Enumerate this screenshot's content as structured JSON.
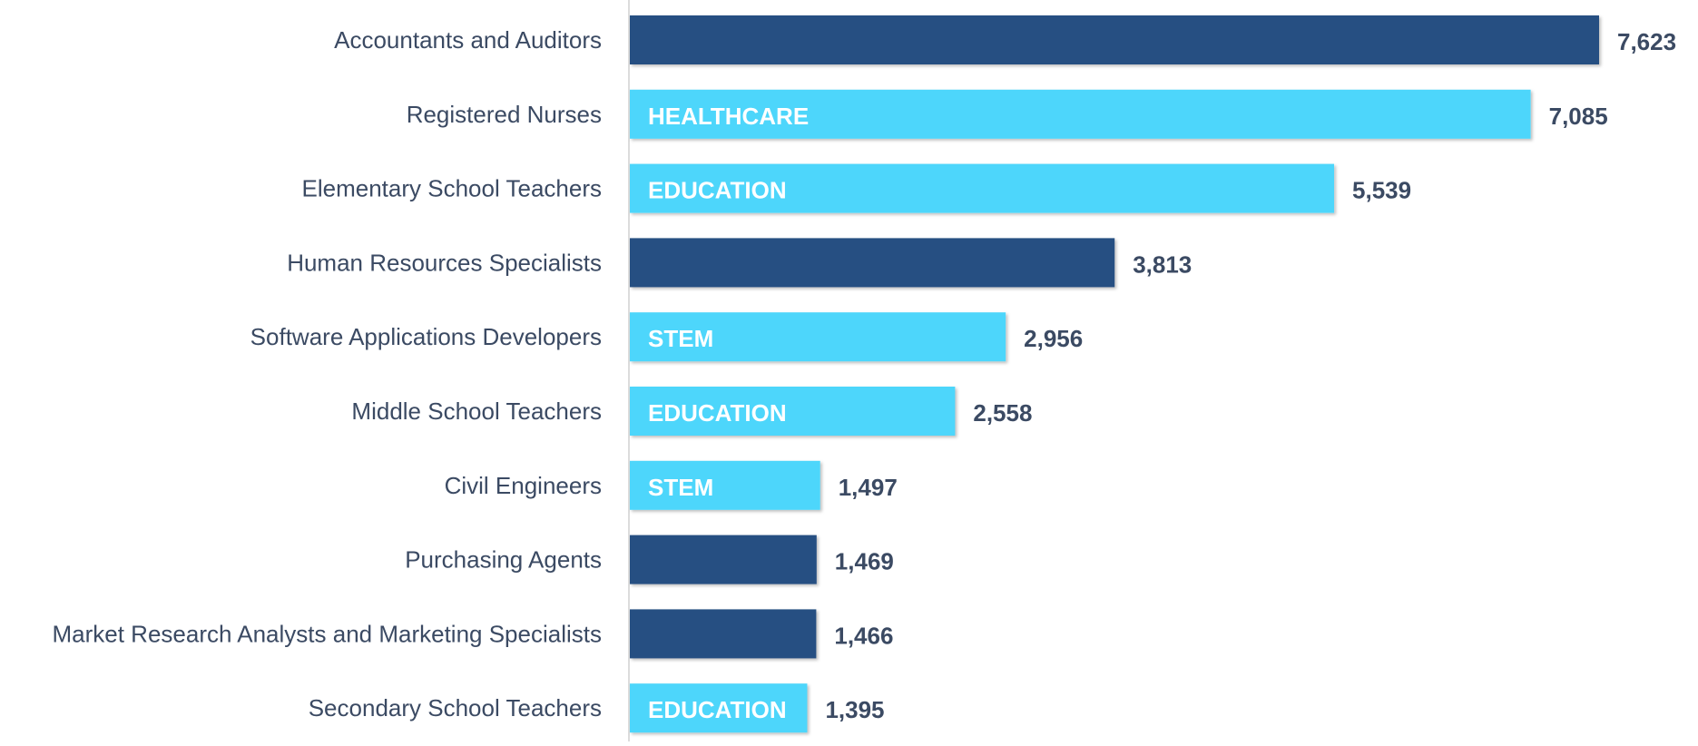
{
  "chart_data": {
    "type": "bar",
    "orientation": "horizontal",
    "categories": [
      "Accountants and Auditors",
      "Registered Nurses",
      "Elementary School Teachers",
      "Human Resources Specialists",
      "Software Applications Developers",
      "Middle School Teachers",
      "Civil Engineers",
      "Purchasing Agents",
      "Market Research Analysts and Marketing Specialists",
      "Secondary School Teachers"
    ],
    "values": [
      7623,
      7085,
      5539,
      3813,
      2956,
      2558,
      1497,
      1469,
      1466,
      1395
    ],
    "value_labels": [
      "7,623",
      "7,085",
      "5,539",
      "3,813",
      "2,956",
      "2,558",
      "1,497",
      "1,469",
      "1,466",
      "1,395"
    ],
    "tags": [
      null,
      "HEALTHCARE",
      "EDUCATION",
      null,
      "STEM",
      "EDUCATION",
      "STEM",
      null,
      null,
      "EDUCATION"
    ],
    "colors": [
      "#264f82",
      "#4dd6fb",
      "#4dd6fb",
      "#264f82",
      "#4dd6fb",
      "#4dd6fb",
      "#4dd6fb",
      "#264f82",
      "#264f82",
      "#4dd6fb"
    ]
  }
}
